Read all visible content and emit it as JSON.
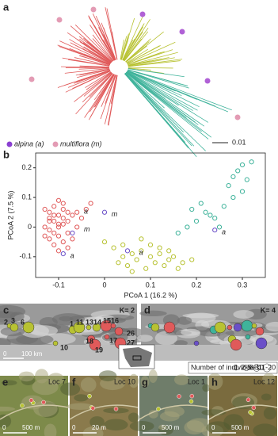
{
  "chart_data": [
    {
      "type": "scatter",
      "x_label": "PCoA 1 (16.2 %)",
      "y_label": "PCoA 2 (7.5 %)",
      "xlim": [
        -0.15,
        0.35
      ],
      "xticks": [
        -0.1,
        0,
        0.1,
        0.2,
        0.3
      ],
      "ylim": [
        -0.17,
        0.25
      ],
      "yticks": [
        -0.1,
        0,
        0.1,
        0.2
      ],
      "series": [
        {
          "color": "#e05a5a",
          "x": [
            -0.13,
            -0.12,
            -0.11,
            -0.1,
            -0.09,
            -0.12,
            -0.11,
            -0.1,
            -0.09,
            -0.08,
            -0.13,
            -0.12,
            -0.11,
            -0.1,
            -0.08,
            -0.07,
            -0.12,
            -0.1,
            -0.09,
            -0.08,
            -0.11,
            -0.1,
            -0.06,
            -0.05,
            -0.04,
            -0.12,
            -0.11,
            -0.09,
            -0.07,
            -0.1,
            -0.08,
            -0.03,
            -0.06,
            -0.13,
            -0.09
          ],
          "values": [
            0.06,
            0.05,
            0.07,
            0.04,
            0.06,
            0.03,
            0.02,
            0.01,
            0.03,
            0.05,
            0.0,
            -0.01,
            -0.02,
            0.0,
            0.02,
            0.04,
            -0.04,
            -0.03,
            -0.05,
            -0.02,
            -0.06,
            -0.08,
            0.0,
            0.03,
            0.06,
            0.02,
            0.04,
            0.08,
            -0.04,
            0.09,
            -0.07,
            0.08,
            0.05,
            -0.03,
            0.01
          ]
        },
        {
          "color": "#b8c232",
          "x": [
            0.0,
            0.02,
            0.04,
            0.06,
            0.08,
            0.1,
            0.12,
            0.14,
            0.03,
            0.05,
            0.07,
            0.09,
            0.11,
            0.13,
            0.15,
            0.17,
            0.06,
            0.08,
            0.1,
            0.12,
            0.04,
            0.14,
            0.16,
            0.19
          ],
          "values": [
            -0.05,
            -0.07,
            -0.06,
            -0.09,
            -0.08,
            -0.1,
            -0.09,
            -0.11,
            -0.12,
            -0.13,
            -0.11,
            -0.14,
            -0.12,
            -0.13,
            -0.1,
            -0.12,
            -0.15,
            -0.04,
            -0.06,
            -0.07,
            -0.1,
            -0.08,
            -0.14,
            -0.11
          ]
        },
        {
          "color": "#3fb39b",
          "x": [
            0.16,
            0.18,
            0.2,
            0.22,
            0.24,
            0.26,
            0.28,
            0.3,
            0.31,
            0.32,
            0.29,
            0.27,
            0.25,
            0.23,
            0.21,
            0.19,
            0.3,
            0.28
          ],
          "values": [
            -0.02,
            0.0,
            0.02,
            0.05,
            0.03,
            0.07,
            0.1,
            0.12,
            0.16,
            0.22,
            0.19,
            0.14,
            0.0,
            0.04,
            0.08,
            0.06,
            0.21,
            0.17
          ]
        },
        {
          "color": "#6a4fc8",
          "x": [
            -0.07,
            0.0,
            0.05,
            0.24,
            -0.09
          ],
          "values": [
            -0.02,
            0.05,
            -0.08,
            -0.01,
            -0.09
          ]
        }
      ],
      "annotations": [
        {
          "text": "a",
          "x": -0.05,
          "y": 0.06
        },
        {
          "text": "m",
          "x": 0.01,
          "y": 0.05
        },
        {
          "text": "m",
          "x": -0.05,
          "y": 0.0
        },
        {
          "text": "a",
          "x": -0.08,
          "y": -0.09
        },
        {
          "text": "a",
          "x": 0.07,
          "y": -0.08
        },
        {
          "text": "a",
          "x": 0.25,
          "y": -0.01
        }
      ]
    }
  ],
  "figure": {
    "panel_a": {
      "label": "a",
      "legend": [
        "alpina (a)",
        "multiflora (m)"
      ],
      "scale": "0.01"
    },
    "panel_b": {
      "label": "b"
    },
    "panel_c": {
      "label": "c",
      "k": "K= 2",
      "sites": [
        "2",
        "3",
        "6",
        "10",
        "1",
        "11",
        "13",
        "14",
        "15",
        "16",
        "26",
        "27",
        "17",
        "18",
        "19"
      ],
      "scale": [
        "0",
        "100 km"
      ]
    },
    "panel_d": {
      "label": "d",
      "k": "K= 4",
      "size_legend": "Number of individuals",
      "sizes": [
        "1",
        "2-5",
        "6-10",
        "11-20"
      ]
    },
    "photos": [
      {
        "label": "e",
        "title": "Loc 7",
        "scale": [
          "0",
          "500 m"
        ]
      },
      {
        "label": "f",
        "title": "Loc 10",
        "scale": [
          "0",
          "20 m"
        ]
      },
      {
        "label": "g",
        "title": "Loc 1",
        "scale": [
          "0",
          "500 m"
        ]
      },
      {
        "label": "h",
        "title": "Loc 12",
        "scale": [
          "0",
          "500 m"
        ]
      }
    ]
  }
}
